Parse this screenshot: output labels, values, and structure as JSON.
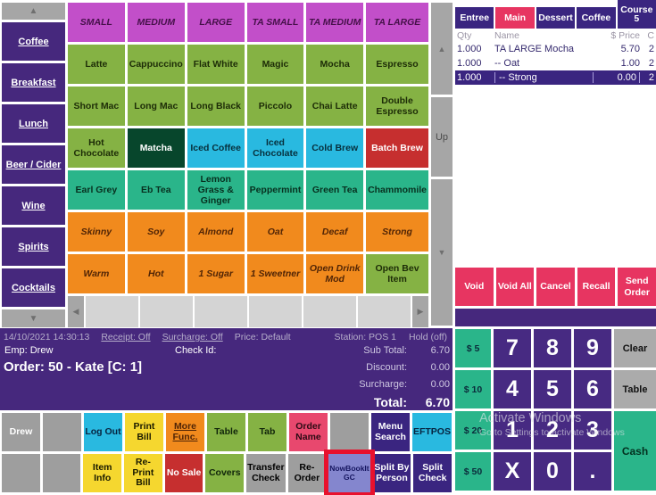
{
  "colors": {
    "purple_dark": "#46287d",
    "purple_key": "#472a82",
    "tab_purple": "#3a2580",
    "magenta_header": "#c24fc9",
    "green": "#85b244",
    "dark_green": "#07462c",
    "cyan": "#29b9e0",
    "red": "#c62f2f",
    "teal": "#2ab58a",
    "orange": "#f18a1d",
    "pink": "#e73561",
    "yellow": "#f5d72f",
    "gray": "#9e9e9e",
    "periwinkle": "#8486ce",
    "highlight_red": "#e8112d"
  },
  "icons": {
    "up": "▲",
    "down": "▼",
    "left": "◀",
    "right": "▶"
  },
  "sidebar": {
    "categories": [
      "Coffee",
      "Breakfast",
      "Lunch",
      "Beer / Cider",
      "Wine",
      "Spirits",
      "Cocktails"
    ]
  },
  "grid": {
    "headers": [
      "SMALL",
      "MEDIUM",
      "LARGE",
      "TA SMALL",
      "TA MEDIUM",
      "TA LARGE"
    ],
    "rows": [
      [
        "Latte",
        "Cappuccino",
        "Flat White",
        "Magic",
        "Mocha",
        "Espresso"
      ],
      [
        "Short Mac",
        "Long Mac",
        "Long Black",
        "Piccolo",
        "Chai Latte",
        "Double Espresso"
      ],
      [
        "Hot Chocolate",
        "Matcha",
        "Iced Coffee",
        "Iced Chocolate",
        "Cold Brew",
        "Batch Brew"
      ],
      [
        "Earl Grey",
        "Eb Tea",
        "Lemon Grass & Ginger",
        "Peppermint",
        "Green Tea",
        "Chammomile"
      ],
      [
        "Skinny",
        "Soy",
        "Almond",
        "Oat",
        "Decaf",
        "Strong"
      ],
      [
        "Warm",
        "Hot",
        "1 Sugar",
        "1 Sweetner",
        "Open Drink Mod",
        "Open Bev Item"
      ]
    ]
  },
  "scroll": {
    "up_label": "Up"
  },
  "order_panel": {
    "tabs": [
      "Entree",
      "Main",
      "Dessert",
      "Coffee",
      "Course 5"
    ],
    "active_tab": "Main",
    "columns": {
      "qty": "Qty",
      "name": "Name",
      "price": "$ Price",
      "course": "C"
    },
    "items": [
      {
        "qty": "1.000",
        "name": "TA LARGE Mocha",
        "price": "5.70",
        "course": "2"
      },
      {
        "qty": "1.000",
        "name": "-- Oat",
        "price": "1.00",
        "course": "2"
      },
      {
        "qty": "1.000",
        "name": "-- Strong",
        "price": "0.00",
        "course": "2"
      }
    ],
    "actions": [
      "Void",
      "Void All",
      "Cancel",
      "Recall",
      "Send Order"
    ]
  },
  "numpad": {
    "cash_amounts": [
      "$ 5",
      "$ 10",
      "$ 20",
      "$ 50"
    ],
    "keys": [
      "7",
      "8",
      "9",
      "4",
      "5",
      "6",
      "1",
      "2",
      "3",
      "X",
      "0",
      "."
    ],
    "clear": "Clear",
    "table": "Table",
    "cash": "Cash"
  },
  "status": {
    "datetime": "14/10/2021 14:30:13",
    "receipt": "Receipt: Off",
    "surcharge_mode": "Surcharge: Off",
    "price_level": "Price: Default",
    "station": "Station: POS 1",
    "hold": "Hold (off)",
    "employee": "Emp: Drew",
    "check_id_label": "Check Id:",
    "order_line": "Order: 50 - Kate [C:  1]",
    "totals": {
      "sub_total_label": "Sub Total:",
      "sub_total": "6.70",
      "discount_label": "Discount:",
      "discount": "0.00",
      "surcharge_label": "Surcharge:",
      "surcharge": "0.00",
      "total_label": "Total:",
      "total": "6.70"
    }
  },
  "function_rows": {
    "row1": [
      "Drew",
      "",
      "Log Out",
      "Print Bill",
      "More Func.",
      "Table",
      "Tab",
      "Order Name",
      "",
      "Menu Search",
      "EFTPOS"
    ],
    "row2": [
      "",
      "",
      "Item Info",
      "Re-Print Bill",
      "No Sale",
      "Covers",
      "Transfer Check",
      "Re-Order",
      "NowBookIt GC",
      "Split By Person",
      "Split Check"
    ]
  },
  "watermark": {
    "line1": "Activate Windows",
    "line2": "Go to Settings to activate Windows"
  }
}
